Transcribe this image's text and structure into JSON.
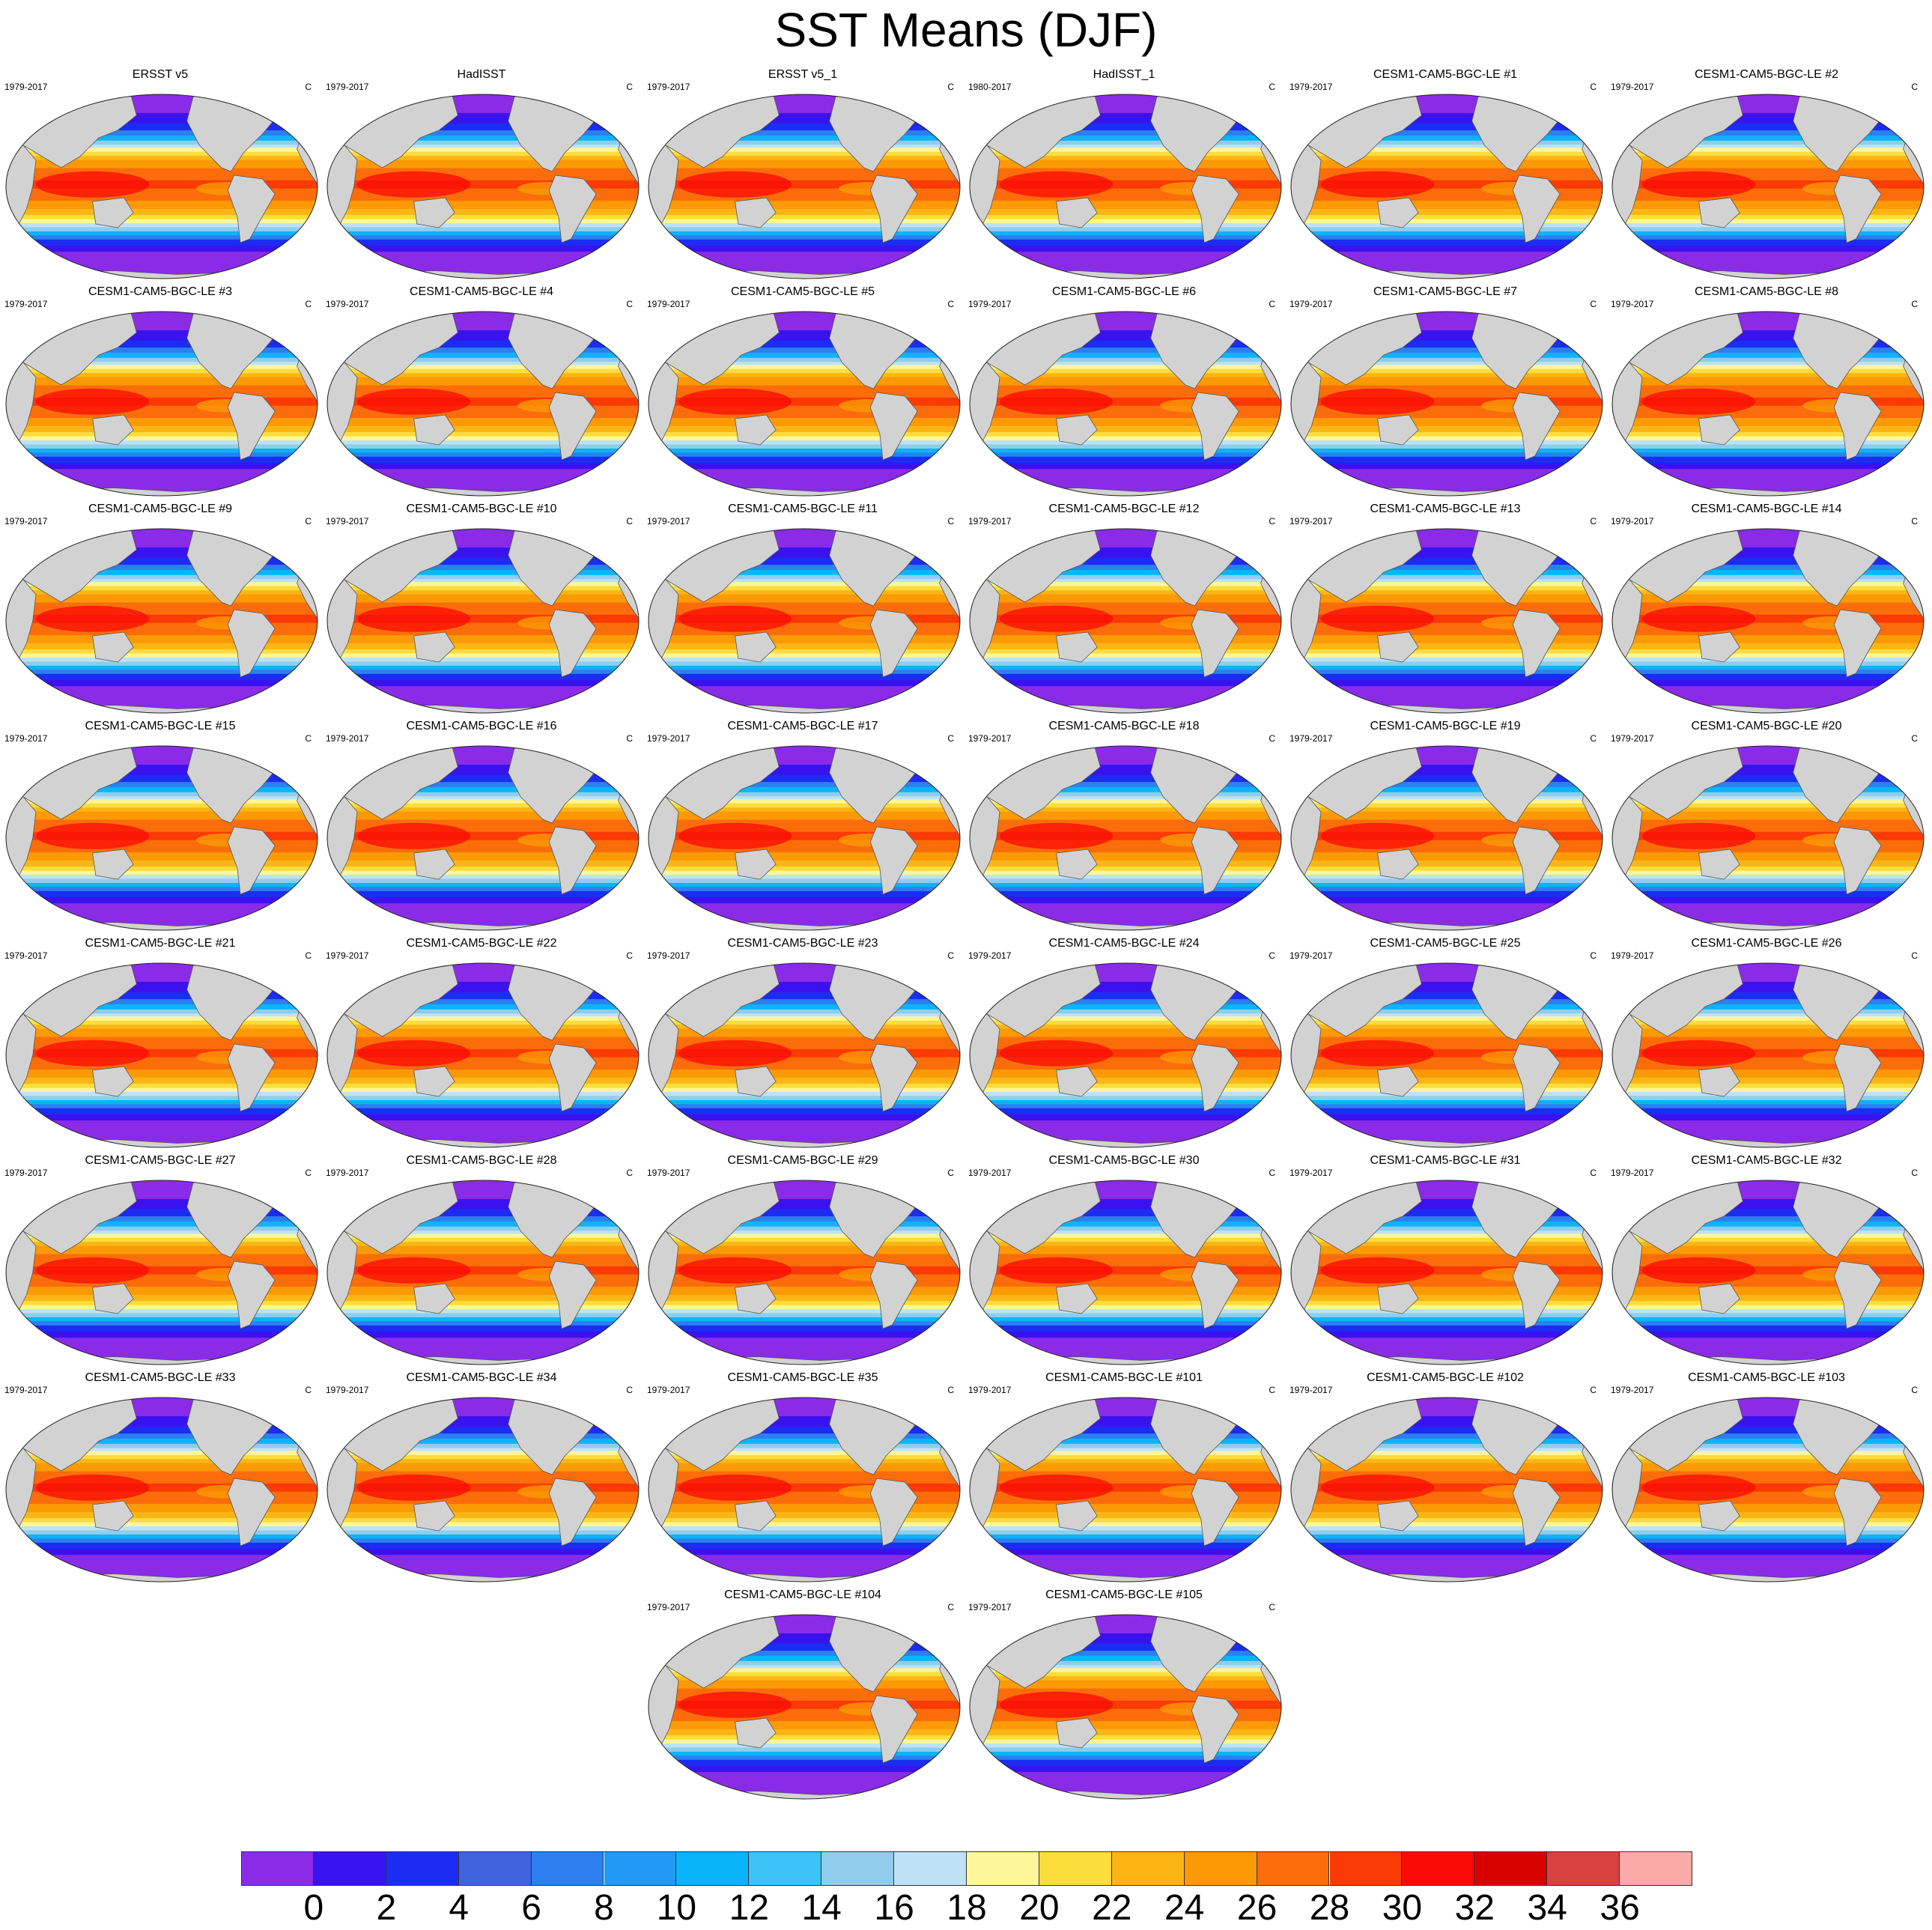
{
  "title": "SST Means (DJF)",
  "units": "C",
  "panels": [
    {
      "title": "ERSST v5",
      "period": "1979-2017"
    },
    {
      "title": "HadISST",
      "period": "1979-2017"
    },
    {
      "title": "ERSST v5_1",
      "period": "1979-2017"
    },
    {
      "title": "HadISST_1",
      "period": "1980-2017"
    },
    {
      "title": "CESM1-CAM5-BGC-LE #1",
      "period": "1979-2017"
    },
    {
      "title": "CESM1-CAM5-BGC-LE #2",
      "period": "1979-2017"
    },
    {
      "title": "CESM1-CAM5-BGC-LE #3",
      "period": "1979-2017"
    },
    {
      "title": "CESM1-CAM5-BGC-LE #4",
      "period": "1979-2017"
    },
    {
      "title": "CESM1-CAM5-BGC-LE #5",
      "period": "1979-2017"
    },
    {
      "title": "CESM1-CAM5-BGC-LE #6",
      "period": "1979-2017"
    },
    {
      "title": "CESM1-CAM5-BGC-LE #7",
      "period": "1979-2017"
    },
    {
      "title": "CESM1-CAM5-BGC-LE #8",
      "period": "1979-2017"
    },
    {
      "title": "CESM1-CAM5-BGC-LE #9",
      "period": "1979-2017"
    },
    {
      "title": "CESM1-CAM5-BGC-LE #10",
      "period": "1979-2017"
    },
    {
      "title": "CESM1-CAM5-BGC-LE #11",
      "period": "1979-2017"
    },
    {
      "title": "CESM1-CAM5-BGC-LE #12",
      "period": "1979-2017"
    },
    {
      "title": "CESM1-CAM5-BGC-LE #13",
      "period": "1979-2017"
    },
    {
      "title": "CESM1-CAM5-BGC-LE #14",
      "period": "1979-2017"
    },
    {
      "title": "CESM1-CAM5-BGC-LE #15",
      "period": "1979-2017"
    },
    {
      "title": "CESM1-CAM5-BGC-LE #16",
      "period": "1979-2017"
    },
    {
      "title": "CESM1-CAM5-BGC-LE #17",
      "period": "1979-2017"
    },
    {
      "title": "CESM1-CAM5-BGC-LE #18",
      "period": "1979-2017"
    },
    {
      "title": "CESM1-CAM5-BGC-LE #19",
      "period": "1979-2017"
    },
    {
      "title": "CESM1-CAM5-BGC-LE #20",
      "period": "1979-2017"
    },
    {
      "title": "CESM1-CAM5-BGC-LE #21",
      "period": "1979-2017"
    },
    {
      "title": "CESM1-CAM5-BGC-LE #22",
      "period": "1979-2017"
    },
    {
      "title": "CESM1-CAM5-BGC-LE #23",
      "period": "1979-2017"
    },
    {
      "title": "CESM1-CAM5-BGC-LE #24",
      "period": "1979-2017"
    },
    {
      "title": "CESM1-CAM5-BGC-LE #25",
      "period": "1979-2017"
    },
    {
      "title": "CESM1-CAM5-BGC-LE #26",
      "period": "1979-2017"
    },
    {
      "title": "CESM1-CAM5-BGC-LE #27",
      "period": "1979-2017"
    },
    {
      "title": "CESM1-CAM5-BGC-LE #28",
      "period": "1979-2017"
    },
    {
      "title": "CESM1-CAM5-BGC-LE #29",
      "period": "1979-2017"
    },
    {
      "title": "CESM1-CAM5-BGC-LE #30",
      "period": "1979-2017"
    },
    {
      "title": "CESM1-CAM5-BGC-LE #31",
      "period": "1979-2017"
    },
    {
      "title": "CESM1-CAM5-BGC-LE #32",
      "period": "1979-2017"
    },
    {
      "title": "CESM1-CAM5-BGC-LE #33",
      "period": "1979-2017"
    },
    {
      "title": "CESM1-CAM5-BGC-LE #34",
      "period": "1979-2017"
    },
    {
      "title": "CESM1-CAM5-BGC-LE #35",
      "period": "1979-2017"
    },
    {
      "title": "CESM1-CAM5-BGC-LE #101",
      "period": "1979-2017"
    },
    {
      "title": "CESM1-CAM5-BGC-LE #102",
      "period": "1979-2017"
    },
    {
      "title": "CESM1-CAM5-BGC-LE #103",
      "period": "1979-2017"
    },
    {
      "title": "CESM1-CAM5-BGC-LE #104",
      "period": "1979-2017"
    },
    {
      "title": "CESM1-CAM5-BGC-LE #105",
      "period": "1979-2017"
    }
  ],
  "colorbar": {
    "labels": [
      "0",
      "2",
      "4",
      "6",
      "8",
      "10",
      "12",
      "14",
      "16",
      "18",
      "20",
      "22",
      "24",
      "26",
      "28",
      "30",
      "32",
      "34",
      "36"
    ],
    "colors": [
      "#8a2be8",
      "#3a12f0",
      "#1b2df2",
      "#3f63e0",
      "#2d7ff0",
      "#2299f5",
      "#0ab4fa",
      "#3cc3f7",
      "#90cdec",
      "#bde2f6",
      "#fff59a",
      "#fbdd3c",
      "#fbb616",
      "#fb9a05",
      "#fb6d0a",
      "#fb3a05",
      "#fb0a05",
      "#d90000",
      "#d94040",
      "#fbaaaa"
    ]
  },
  "map_colors": {
    "land": "#d2d2d2",
    "coast": "#555555"
  }
}
